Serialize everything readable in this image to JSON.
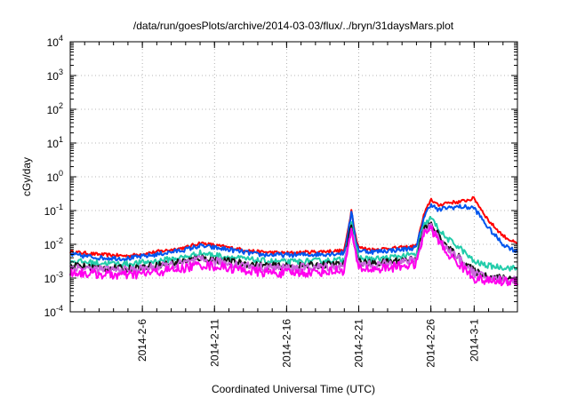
{
  "chart_data": {
    "type": "line",
    "title": "/data/run/goesPlots/archive/2014-03-03/flux/../bryn/31daysMars.plot",
    "xlabel": "Coordinated Universal Time (UTC)",
    "ylabel": "cGy/day",
    "y_scale": "log",
    "ylim": [
      "1e-4",
      "1e4"
    ],
    "xlim": [
      "2014-02-01",
      "2014-03-04"
    ],
    "grid": true,
    "y_ticks": [
      {
        "base": "10",
        "exp": "-4"
      },
      {
        "base": "10",
        "exp": "-3"
      },
      {
        "base": "10",
        "exp": "-2"
      },
      {
        "base": "10",
        "exp": "-1"
      },
      {
        "base": "10",
        "exp": "0"
      },
      {
        "base": "10",
        "exp": "1"
      },
      {
        "base": "10",
        "exp": "2"
      },
      {
        "base": "10",
        "exp": "3"
      },
      {
        "base": "10",
        "exp": "4"
      }
    ],
    "x_ticks": [
      "2014-2-6",
      "2014-2-11",
      "2014-2-16",
      "2014-2-21",
      "2014-2-26",
      "2014-3-1"
    ],
    "x": [
      "2014-02-01",
      "2014-02-03",
      "2014-02-05",
      "2014-02-07",
      "2014-02-09",
      "2014-02-10",
      "2014-02-12",
      "2014-02-14",
      "2014-02-16",
      "2014-02-18",
      "2014-02-20",
      "2014-02-20T12:00",
      "2014-02-20T18:00",
      "2014-02-21",
      "2014-02-22",
      "2014-02-23",
      "2014-02-24",
      "2014-02-25",
      "2014-02-25T12:00",
      "2014-02-26",
      "2014-02-26T12:00",
      "2014-02-27",
      "2014-02-28",
      "2014-03-01",
      "2014-03-02",
      "2014-03-03",
      "2014-03-04"
    ],
    "series": [
      {
        "color": "#ff0000",
        "values": [
          0.006,
          0.005,
          0.0045,
          0.006,
          0.008,
          0.011,
          0.008,
          0.006,
          0.0055,
          0.006,
          0.0065,
          0.11,
          0.02,
          0.008,
          0.007,
          0.0075,
          0.008,
          0.009,
          0.07,
          0.22,
          0.14,
          0.17,
          0.18,
          0.23,
          0.05,
          0.018,
          0.01
        ]
      },
      {
        "color": "#0055ee",
        "values": [
          0.005,
          0.004,
          0.0038,
          0.005,
          0.007,
          0.009,
          0.007,
          0.005,
          0.0048,
          0.005,
          0.0055,
          0.09,
          0.016,
          0.0065,
          0.006,
          0.0065,
          0.007,
          0.008,
          0.06,
          0.16,
          0.1,
          0.12,
          0.13,
          0.12,
          0.03,
          0.01,
          0.006
        ]
      },
      {
        "color": "#22ccaa",
        "values": [
          0.0032,
          0.0028,
          0.0026,
          0.0032,
          0.0042,
          0.0055,
          0.0042,
          0.0033,
          0.003,
          0.0032,
          0.0035,
          0.05,
          0.009,
          0.004,
          0.0036,
          0.004,
          0.0045,
          0.005,
          0.035,
          0.06,
          0.03,
          0.016,
          0.008,
          0.003,
          0.0023,
          0.0021,
          0.0019
        ]
      },
      {
        "color": "#111111",
        "values": [
          0.0024,
          0.002,
          0.0019,
          0.0024,
          0.0032,
          0.004,
          0.0031,
          0.0024,
          0.0022,
          0.0024,
          0.0026,
          0.04,
          0.007,
          0.003,
          0.0027,
          0.003,
          0.0034,
          0.0038,
          0.028,
          0.04,
          0.02,
          0.009,
          0.004,
          0.0016,
          0.0011,
          0.001,
          0.001
        ]
      },
      {
        "color": "#cc66dd",
        "values": [
          0.0021,
          0.0018,
          0.0017,
          0.0021,
          0.0028,
          0.0035,
          0.0028,
          0.0021,
          0.002,
          0.0021,
          0.0023,
          0.036,
          0.006,
          0.0027,
          0.0024,
          0.0027,
          0.003,
          0.0034,
          0.025,
          0.035,
          0.017,
          0.008,
          0.0035,
          0.0014,
          0.001,
          0.0009,
          0.0009
        ]
      },
      {
        "color": "#ff00ee",
        "values": [
          0.0015,
          0.0013,
          0.0012,
          0.0015,
          0.002,
          0.0025,
          0.002,
          0.0015,
          0.0014,
          0.0015,
          0.0017,
          0.03,
          0.005,
          0.002,
          0.0018,
          0.002,
          0.0023,
          0.0026,
          0.02,
          0.03,
          0.014,
          0.006,
          0.0025,
          0.001,
          0.0008,
          0.0008,
          0.0008
        ]
      }
    ]
  }
}
